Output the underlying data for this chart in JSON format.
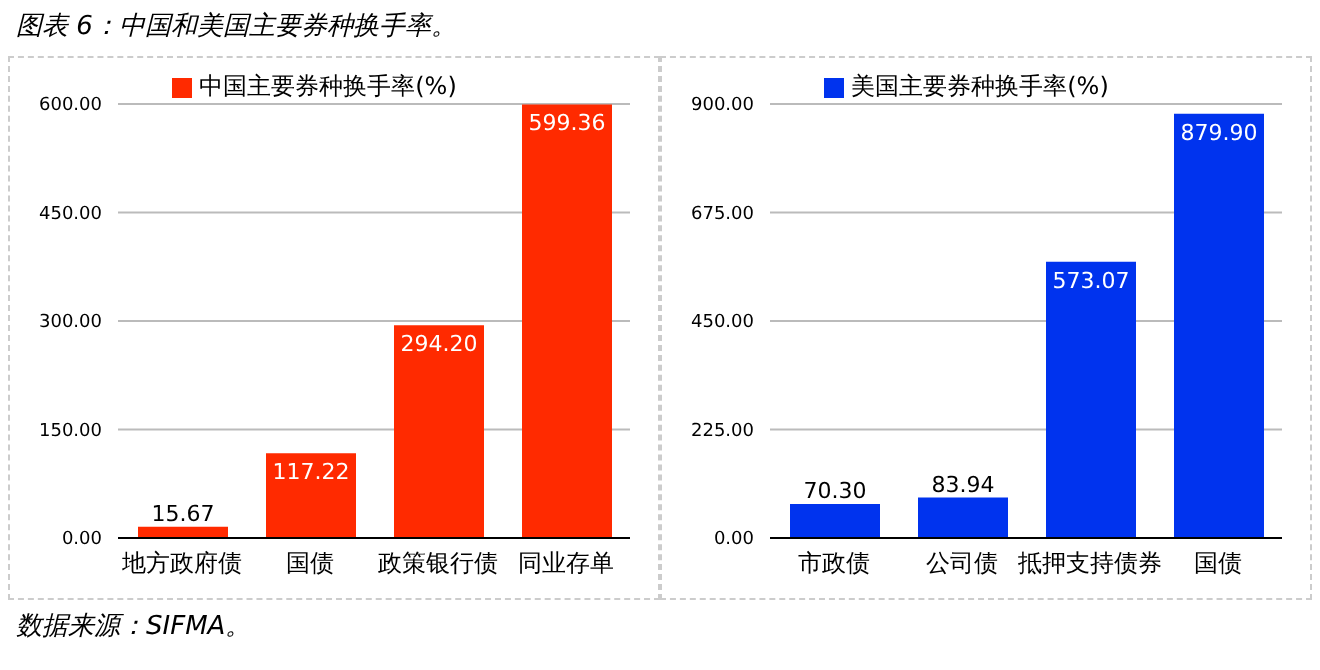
{
  "chart_data": [
    {
      "type": "bar",
      "title": "图表 6：中国和美国主要券种换手率。",
      "annotations": [
        "数据来源：SIFMA。"
      ],
      "categories": [
        "地方政府债",
        "国债",
        "政策银行债",
        "同业存单"
      ],
      "series": [
        {
          "name": "中国主要券种换手率(%)",
          "color": "#ff2a00",
          "values": [
            15.67,
            117.22,
            294.2,
            599.36
          ],
          "value_labels": [
            "15.67",
            "117.22",
            "294.20",
            "599.36"
          ]
        }
      ],
      "ylim": [
        0,
        600
      ],
      "yticks": [
        {
          "value": 0,
          "label": "0.00"
        },
        {
          "value": 150,
          "label": "150.00"
        },
        {
          "value": 300,
          "label": "300.00"
        },
        {
          "value": 450,
          "label": "450.00"
        },
        {
          "value": 600,
          "label": "600.00"
        }
      ],
      "grid": "y",
      "legend": "top"
    },
    {
      "type": "bar",
      "categories": [
        "市政债",
        "公司债",
        "抵押支持债券",
        "国债"
      ],
      "series": [
        {
          "name": "美国主要券种换手率(%)",
          "color": "#0033ee",
          "values": [
            70.3,
            83.94,
            573.07,
            879.9
          ],
          "value_labels": [
            "70.30",
            "83.94",
            "573.07",
            "879.90"
          ]
        }
      ],
      "ylim": [
        0,
        900
      ],
      "yticks": [
        {
          "value": 0,
          "label": "0.00"
        },
        {
          "value": 225,
          "label": "225.00"
        },
        {
          "value": 450,
          "label": "450.00"
        },
        {
          "value": 675,
          "label": "675.00"
        },
        {
          "value": 900,
          "label": "900.00"
        }
      ],
      "grid": "y",
      "legend": "top"
    }
  ]
}
